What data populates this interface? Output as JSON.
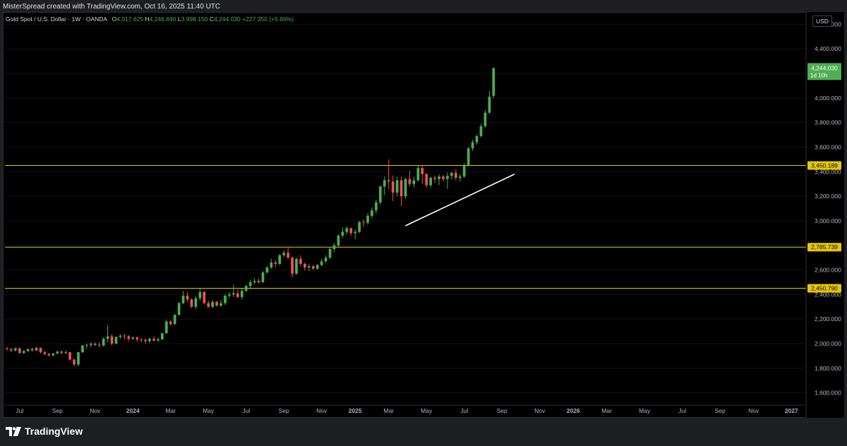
{
  "credit": "MisterSpread created with TradingView.com, Oct 16, 2025 11:40 UTC",
  "legend": {
    "symbol": "Gold Spot / U.S. Dollar · 1W · OANDA",
    "open_label": "O",
    "open": "4,017.625",
    "high_label": "H",
    "high": "4,246.690",
    "low_label": "L",
    "low": "3,998.150",
    "close_label": "C",
    "close": "4,244.030",
    "change": "+227.350 (+5.66%)"
  },
  "unit_badge": "USD",
  "footer": {
    "brand": "TradingView"
  },
  "colors": {
    "up": "#4caf50",
    "down": "#ef5350",
    "level": "#e7c800",
    "trendline": "#ffffff",
    "background": "#000000"
  },
  "chart_data": {
    "type": "candlestick",
    "timeframe": "1W",
    "ylim": [
      1500,
      4700
    ],
    "y_ticks": [
      1600,
      1800,
      2000,
      2200,
      2400,
      2600,
      2800,
      3000,
      3200,
      3400,
      3600,
      3800,
      4000,
      4200,
      4400,
      4600
    ],
    "y_tick_labels": [
      "1,600.000",
      "1,800.000",
      "2,000.000",
      "2,200.000",
      "2,400.000",
      "2,600.000",
      "2,800.000",
      "3,000.000",
      "3,200.000",
      "3,400.000",
      "3,600.000",
      "3,800.000",
      "4,000.000",
      "4,200.000",
      "4,400.000",
      "4,600.000"
    ],
    "x_ticks": [
      {
        "label": "Jul",
        "week": 3
      },
      {
        "label": "Sep",
        "week": 12
      },
      {
        "label": "Nov",
        "week": 21
      },
      {
        "label": "2024",
        "week": 30
      },
      {
        "label": "Mar",
        "week": 39
      },
      {
        "label": "May",
        "week": 48
      },
      {
        "label": "Jul",
        "week": 57
      },
      {
        "label": "Sep",
        "week": 66
      },
      {
        "label": "Nov",
        "week": 75
      },
      {
        "label": "2025",
        "week": 83
      },
      {
        "label": "Mar",
        "week": 91
      },
      {
        "label": "May",
        "week": 100
      },
      {
        "label": "Jul",
        "week": 109
      },
      {
        "label": "Sep",
        "week": 118
      },
      {
        "label": "Nov",
        "week": 127
      },
      {
        "label": "2026",
        "week": 135
      },
      {
        "label": "Mar",
        "week": 143
      },
      {
        "label": "May",
        "week": 152
      },
      {
        "label": "Jul",
        "week": 161
      },
      {
        "label": "Sep",
        "week": 170
      },
      {
        "label": "Nov",
        "week": 178
      },
      {
        "label": "2027",
        "week": 187
      }
    ],
    "x_range_weeks": [
      -0.5,
      190.5
    ],
    "horizontal_levels": [
      {
        "value": 3450.189,
        "label": "3,450.189"
      },
      {
        "value": 2785.739,
        "label": "2,785.739"
      },
      {
        "value": 2450.79,
        "label": "2,450.790"
      }
    ],
    "last_price": {
      "value": 4244.03,
      "label": "4,244.030",
      "countdown": "1d 10h"
    },
    "trendline": {
      "from": {
        "week": 95,
        "price": 2960
      },
      "to": {
        "week": 121,
        "price": 3380
      }
    },
    "candles": [
      {
        "w": 0,
        "o": 1960,
        "h": 1975,
        "l": 1945,
        "c": 1955
      },
      {
        "w": 1,
        "o": 1955,
        "h": 1965,
        "l": 1930,
        "c": 1945
      },
      {
        "w": 2,
        "o": 1945,
        "h": 1970,
        "l": 1935,
        "c": 1962
      },
      {
        "w": 3,
        "o": 1962,
        "h": 1968,
        "l": 1915,
        "c": 1925
      },
      {
        "w": 4,
        "o": 1925,
        "h": 1945,
        "l": 1915,
        "c": 1940
      },
      {
        "w": 5,
        "o": 1940,
        "h": 1962,
        "l": 1932,
        "c": 1955
      },
      {
        "w": 6,
        "o": 1955,
        "h": 1968,
        "l": 1935,
        "c": 1945
      },
      {
        "w": 7,
        "o": 1945,
        "h": 1975,
        "l": 1940,
        "c": 1965
      },
      {
        "w": 8,
        "o": 1965,
        "h": 1968,
        "l": 1920,
        "c": 1930
      },
      {
        "w": 9,
        "o": 1930,
        "h": 1940,
        "l": 1905,
        "c": 1915
      },
      {
        "w": 10,
        "o": 1915,
        "h": 1925,
        "l": 1895,
        "c": 1905
      },
      {
        "w": 11,
        "o": 1905,
        "h": 1925,
        "l": 1895,
        "c": 1920
      },
      {
        "w": 12,
        "o": 1920,
        "h": 1945,
        "l": 1915,
        "c": 1935
      },
      {
        "w": 13,
        "o": 1935,
        "h": 1945,
        "l": 1910,
        "c": 1925
      },
      {
        "w": 14,
        "o": 1925,
        "h": 1945,
        "l": 1915,
        "c": 1930
      },
      {
        "w": 15,
        "o": 1930,
        "h": 1935,
        "l": 1865,
        "c": 1870
      },
      {
        "w": 16,
        "o": 1870,
        "h": 1880,
        "l": 1820,
        "c": 1830
      },
      {
        "w": 17,
        "o": 1830,
        "h": 1935,
        "l": 1815,
        "c": 1930
      },
      {
        "w": 18,
        "o": 1930,
        "h": 1990,
        "l": 1925,
        "c": 1985
      },
      {
        "w": 19,
        "o": 1985,
        "h": 2000,
        "l": 1960,
        "c": 1990
      },
      {
        "w": 20,
        "o": 1990,
        "h": 2010,
        "l": 1970,
        "c": 2000
      },
      {
        "w": 21,
        "o": 2000,
        "h": 2010,
        "l": 1980,
        "c": 1990
      },
      {
        "w": 22,
        "o": 1990,
        "h": 2010,
        "l": 1970,
        "c": 1985
      },
      {
        "w": 23,
        "o": 1985,
        "h": 2050,
        "l": 1975,
        "c": 2040
      },
      {
        "w": 24,
        "o": 2040,
        "h": 2150,
        "l": 2010,
        "c": 2060
      },
      {
        "w": 25,
        "o": 2060,
        "h": 2080,
        "l": 1985,
        "c": 2000
      },
      {
        "w": 26,
        "o": 2000,
        "h": 2060,
        "l": 1995,
        "c": 2055
      },
      {
        "w": 27,
        "o": 2055,
        "h": 2075,
        "l": 2040,
        "c": 2065
      },
      {
        "w": 28,
        "o": 2065,
        "h": 2080,
        "l": 2035,
        "c": 2060
      },
      {
        "w": 29,
        "o": 2060,
        "h": 2070,
        "l": 2020,
        "c": 2040
      },
      {
        "w": 30,
        "o": 2040,
        "h": 2060,
        "l": 2030,
        "c": 2050
      },
      {
        "w": 31,
        "o": 2050,
        "h": 2060,
        "l": 2015,
        "c": 2035
      },
      {
        "w": 32,
        "o": 2035,
        "h": 2045,
        "l": 2010,
        "c": 2030
      },
      {
        "w": 33,
        "o": 2030,
        "h": 2045,
        "l": 2000,
        "c": 2020
      },
      {
        "w": 34,
        "o": 2020,
        "h": 2045,
        "l": 2005,
        "c": 2040
      },
      {
        "w": 35,
        "o": 2040,
        "h": 2060,
        "l": 2015,
        "c": 2025
      },
      {
        "w": 36,
        "o": 2025,
        "h": 2050,
        "l": 2015,
        "c": 2035
      },
      {
        "w": 37,
        "o": 2035,
        "h": 2090,
        "l": 2030,
        "c": 2085
      },
      {
        "w": 38,
        "o": 2085,
        "h": 2195,
        "l": 2080,
        "c": 2180
      },
      {
        "w": 39,
        "o": 2180,
        "h": 2190,
        "l": 2145,
        "c": 2160
      },
      {
        "w": 40,
        "o": 2160,
        "h": 2240,
        "l": 2150,
        "c": 2235
      },
      {
        "w": 41,
        "o": 2235,
        "h": 2340,
        "l": 2230,
        "c": 2330
      },
      {
        "w": 42,
        "o": 2330,
        "h": 2430,
        "l": 2320,
        "c": 2390
      },
      {
        "w": 43,
        "o": 2390,
        "h": 2420,
        "l": 2340,
        "c": 2360
      },
      {
        "w": 44,
        "o": 2360,
        "h": 2370,
        "l": 2290,
        "c": 2300
      },
      {
        "w": 45,
        "o": 2300,
        "h": 2385,
        "l": 2280,
        "c": 2370
      },
      {
        "w": 46,
        "o": 2370,
        "h": 2450,
        "l": 2350,
        "c": 2420
      },
      {
        "w": 47,
        "o": 2420,
        "h": 2430,
        "l": 2320,
        "c": 2330
      },
      {
        "w": 48,
        "o": 2330,
        "h": 2350,
        "l": 2290,
        "c": 2300
      },
      {
        "w": 49,
        "o": 2300,
        "h": 2355,
        "l": 2290,
        "c": 2340
      },
      {
        "w": 50,
        "o": 2340,
        "h": 2350,
        "l": 2300,
        "c": 2310
      },
      {
        "w": 51,
        "o": 2310,
        "h": 2355,
        "l": 2300,
        "c": 2330
      },
      {
        "w": 52,
        "o": 2330,
        "h": 2400,
        "l": 2315,
        "c": 2390
      },
      {
        "w": 53,
        "o": 2390,
        "h": 2420,
        "l": 2370,
        "c": 2400
      },
      {
        "w": 54,
        "o": 2400,
        "h": 2480,
        "l": 2380,
        "c": 2410
      },
      {
        "w": 55,
        "o": 2410,
        "h": 2440,
        "l": 2370,
        "c": 2380
      },
      {
        "w": 56,
        "o": 2380,
        "h": 2450,
        "l": 2360,
        "c": 2430
      },
      {
        "w": 57,
        "o": 2430,
        "h": 2480,
        "l": 2420,
        "c": 2470
      },
      {
        "w": 58,
        "o": 2470,
        "h": 2520,
        "l": 2440,
        "c": 2500
      },
      {
        "w": 59,
        "o": 2500,
        "h": 2530,
        "l": 2485,
        "c": 2510
      },
      {
        "w": 60,
        "o": 2510,
        "h": 2530,
        "l": 2490,
        "c": 2500
      },
      {
        "w": 61,
        "o": 2500,
        "h": 2590,
        "l": 2495,
        "c": 2580
      },
      {
        "w": 62,
        "o": 2580,
        "h": 2630,
        "l": 2570,
        "c": 2620
      },
      {
        "w": 63,
        "o": 2620,
        "h": 2690,
        "l": 2610,
        "c": 2660
      },
      {
        "w": 64,
        "o": 2660,
        "h": 2680,
        "l": 2620,
        "c": 2650
      },
      {
        "w": 65,
        "o": 2650,
        "h": 2730,
        "l": 2640,
        "c": 2720
      },
      {
        "w": 66,
        "o": 2720,
        "h": 2760,
        "l": 2705,
        "c": 2740
      },
      {
        "w": 67,
        "o": 2740,
        "h": 2790,
        "l": 2690,
        "c": 2700
      },
      {
        "w": 68,
        "o": 2700,
        "h": 2710,
        "l": 2540,
        "c": 2570
      },
      {
        "w": 69,
        "o": 2570,
        "h": 2700,
        "l": 2560,
        "c": 2690
      },
      {
        "w": 70,
        "o": 2690,
        "h": 2720,
        "l": 2630,
        "c": 2650
      },
      {
        "w": 71,
        "o": 2650,
        "h": 2660,
        "l": 2595,
        "c": 2620
      },
      {
        "w": 72,
        "o": 2620,
        "h": 2650,
        "l": 2590,
        "c": 2630
      },
      {
        "w": 73,
        "o": 2630,
        "h": 2640,
        "l": 2600,
        "c": 2610
      },
      {
        "w": 74,
        "o": 2610,
        "h": 2650,
        "l": 2600,
        "c": 2640
      },
      {
        "w": 75,
        "o": 2640,
        "h": 2690,
        "l": 2630,
        "c": 2670
      },
      {
        "w": 76,
        "o": 2670,
        "h": 2720,
        "l": 2660,
        "c": 2700
      },
      {
        "w": 77,
        "o": 2700,
        "h": 2790,
        "l": 2690,
        "c": 2770
      },
      {
        "w": 78,
        "o": 2770,
        "h": 2820,
        "l": 2750,
        "c": 2800
      },
      {
        "w": 79,
        "o": 2800,
        "h": 2890,
        "l": 2780,
        "c": 2880
      },
      {
        "w": 80,
        "o": 2880,
        "h": 2945,
        "l": 2860,
        "c": 2910
      },
      {
        "w": 81,
        "o": 2910,
        "h": 2955,
        "l": 2890,
        "c": 2940
      },
      {
        "w": 82,
        "o": 2940,
        "h": 2945,
        "l": 2880,
        "c": 2900
      },
      {
        "w": 83,
        "o": 2900,
        "h": 2930,
        "l": 2850,
        "c": 2910
      },
      {
        "w": 84,
        "o": 2910,
        "h": 3000,
        "l": 2900,
        "c": 2990
      },
      {
        "w": 85,
        "o": 2990,
        "h": 3010,
        "l": 2950,
        "c": 2985
      },
      {
        "w": 86,
        "o": 2985,
        "h": 3060,
        "l": 2970,
        "c": 3040
      },
      {
        "w": 87,
        "o": 3040,
        "h": 3110,
        "l": 3020,
        "c": 3085
      },
      {
        "w": 88,
        "o": 3085,
        "h": 3170,
        "l": 3060,
        "c": 3150
      },
      {
        "w": 89,
        "o": 3150,
        "h": 3290,
        "l": 3130,
        "c": 3280
      },
      {
        "w": 90,
        "o": 3280,
        "h": 3360,
        "l": 3210,
        "c": 3330
      },
      {
        "w": 91,
        "o": 3330,
        "h": 3500,
        "l": 3260,
        "c": 3320
      },
      {
        "w": 92,
        "o": 3320,
        "h": 3370,
        "l": 3160,
        "c": 3230
      },
      {
        "w": 93,
        "o": 3230,
        "h": 3360,
        "l": 3200,
        "c": 3330
      },
      {
        "w": 94,
        "o": 3330,
        "h": 3360,
        "l": 3120,
        "c": 3200
      },
      {
        "w": 95,
        "o": 3200,
        "h": 3350,
        "l": 3180,
        "c": 3340
      },
      {
        "w": 96,
        "o": 3340,
        "h": 3410,
        "l": 3280,
        "c": 3300
      },
      {
        "w": 97,
        "o": 3300,
        "h": 3360,
        "l": 3270,
        "c": 3330
      },
      {
        "w": 98,
        "o": 3330,
        "h": 3450,
        "l": 3320,
        "c": 3430
      },
      {
        "w": 99,
        "o": 3430,
        "h": 3450,
        "l": 3300,
        "c": 3380
      },
      {
        "w": 100,
        "o": 3380,
        "h": 3390,
        "l": 3270,
        "c": 3290
      },
      {
        "w": 101,
        "o": 3290,
        "h": 3360,
        "l": 3270,
        "c": 3350
      },
      {
        "w": 102,
        "o": 3350,
        "h": 3370,
        "l": 3310,
        "c": 3340
      },
      {
        "w": 103,
        "o": 3340,
        "h": 3380,
        "l": 3290,
        "c": 3360
      },
      {
        "w": 104,
        "o": 3360,
        "h": 3375,
        "l": 3320,
        "c": 3340
      },
      {
        "w": 105,
        "o": 3340,
        "h": 3395,
        "l": 3260,
        "c": 3365
      },
      {
        "w": 106,
        "o": 3365,
        "h": 3400,
        "l": 3335,
        "c": 3390
      },
      {
        "w": 107,
        "o": 3390,
        "h": 3420,
        "l": 3330,
        "c": 3350
      },
      {
        "w": 108,
        "o": 3350,
        "h": 3380,
        "l": 3320,
        "c": 3360
      },
      {
        "w": 109,
        "o": 3360,
        "h": 3470,
        "l": 3350,
        "c": 3450
      },
      {
        "w": 110,
        "o": 3450,
        "h": 3600,
        "l": 3440,
        "c": 3590
      },
      {
        "w": 111,
        "o": 3590,
        "h": 3660,
        "l": 3570,
        "c": 3640
      },
      {
        "w": 112,
        "o": 3640,
        "h": 3700,
        "l": 3620,
        "c": 3690
      },
      {
        "w": 113,
        "o": 3690,
        "h": 3790,
        "l": 3680,
        "c": 3770
      },
      {
        "w": 114,
        "o": 3770,
        "h": 3900,
        "l": 3760,
        "c": 3880
      },
      {
        "w": 115,
        "o": 3880,
        "h": 4060,
        "l": 3870,
        "c": 4010
      },
      {
        "w": 116,
        "o": 4017.625,
        "h": 4246.69,
        "l": 3998.15,
        "c": 4244.03
      }
    ]
  }
}
